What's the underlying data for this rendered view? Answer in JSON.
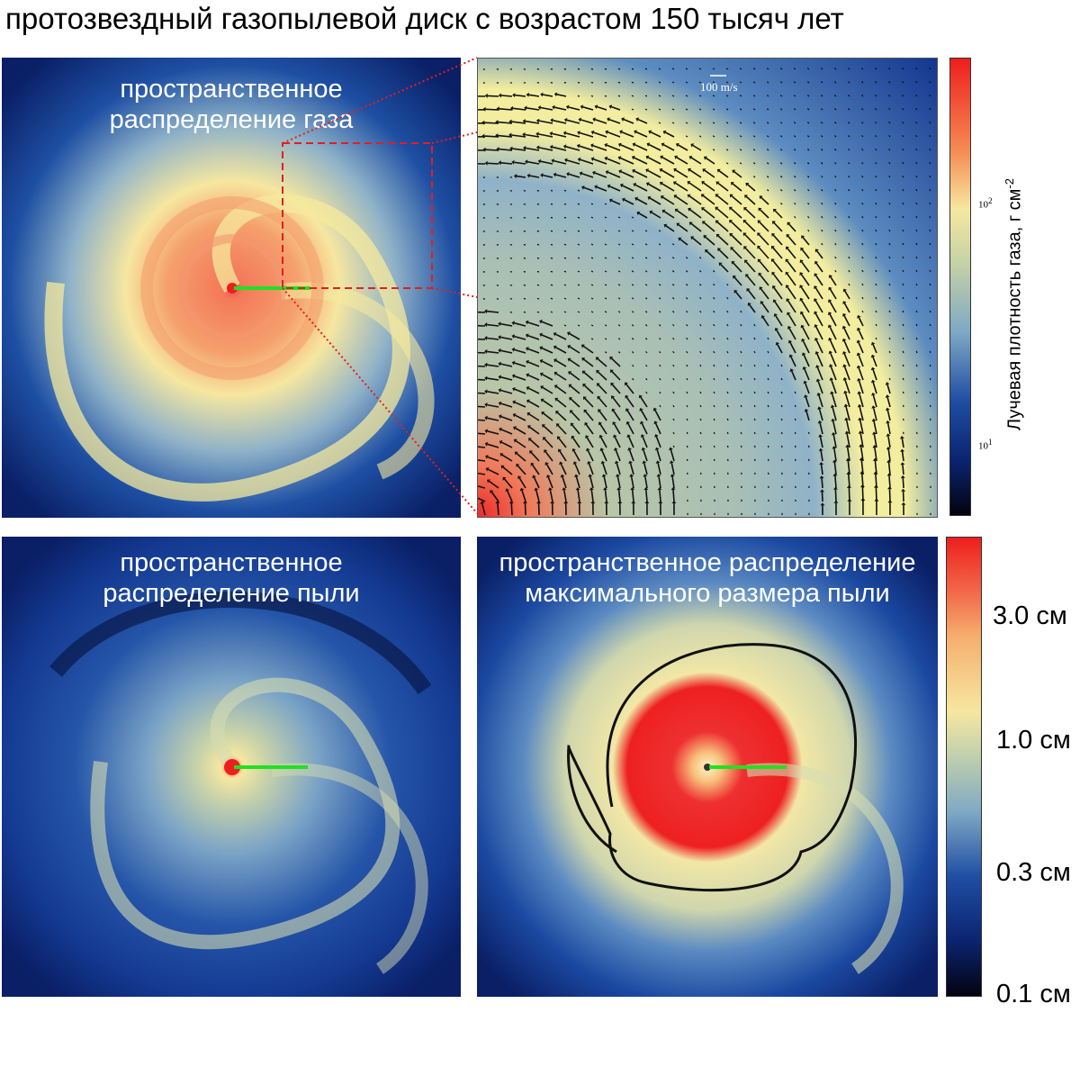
{
  "title": "протозвездный газопылевой диск с возрастом 150 тысяч лет",
  "panels": {
    "gas": {
      "label_line1": "пространственное",
      "label_line2": "распределение газа"
    },
    "zoom": {
      "scale_label": "100 m/s"
    },
    "dust": {
      "label_line1": "пространственное",
      "label_line2": "распределение пыли"
    },
    "dustsize": {
      "label_line1": "пространственное распределение",
      "label_line2": "максимального размера пыли"
    }
  },
  "colorbar_top": {
    "label": "Лучевая плотность газа, г см",
    "label_sup": "-2",
    "ticks": [
      {
        "base": "10",
        "exp": "2"
      },
      {
        "base": "10",
        "exp": "1"
      }
    ]
  },
  "colorbar_bottom": {
    "ticks": [
      "3.0 см",
      "1.0 см",
      "0.3 см",
      "0.1 см"
    ]
  },
  "colors": {
    "low": "#03030f",
    "blue": "#0c2f8a",
    "mid": "#7ea8c4",
    "yellow": "#f8f3a6",
    "orange": "#f4a070",
    "red": "#ee1e1e",
    "marker_green": "#22e022",
    "zoom_box": "#e02020"
  }
}
